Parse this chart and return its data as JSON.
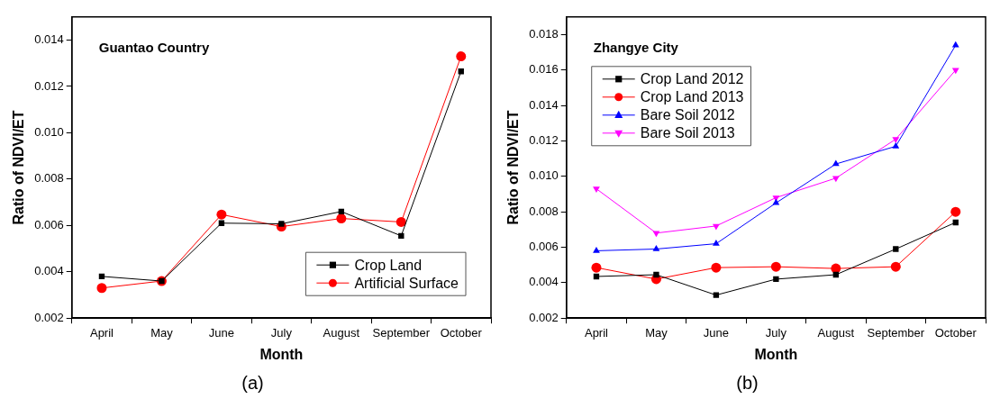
{
  "chart_data": [
    {
      "type": "line",
      "title": "Guantao Country",
      "xlabel": "Month",
      "ylabel": "Ratio of NDVI/ET",
      "annotations": [
        "(a)"
      ],
      "categories": [
        "April",
        "May",
        "June",
        "July",
        "August",
        "September",
        "October"
      ],
      "series": [
        {
          "name": "Crop Land",
          "color": "#000000",
          "marker": "square",
          "values": [
            0.0038,
            0.0036,
            0.0061,
            0.00607,
            0.0066,
            0.00555,
            0.01265
          ]
        },
        {
          "name": "Artificial Surface",
          "color": "#ff0000",
          "marker": "circle",
          "values": [
            0.0033,
            0.0036,
            0.00647,
            0.00595,
            0.0063,
            0.00615,
            0.0133
          ]
        }
      ],
      "ylim": [
        0.002,
        0.015
      ],
      "yticks": [
        0.002,
        0.004,
        0.006,
        0.008,
        {
          "value": 0.01,
          "label": "0.010"
        },
        0.012,
        0.014
      ],
      "grid": false,
      "legend": "bottom right",
      "line_style": "solid"
    },
    {
      "type": "line",
      "title": "Zhangye City",
      "xlabel": "Month",
      "ylabel": "Ratio of NDVI/ET",
      "annotations": [
        "(b)"
      ],
      "categories": [
        "April",
        "May",
        "June",
        "July",
        "August",
        "September",
        "October"
      ],
      "series": [
        {
          "name": "Crop Land 2012",
          "color": "#000000",
          "marker": "square",
          "values": [
            0.00435,
            0.00445,
            0.0033,
            0.0042,
            0.00445,
            0.0059,
            0.0074
          ]
        },
        {
          "name": "Crop Land 2013",
          "color": "#ff0000",
          "marker": "circle",
          "values": [
            0.00485,
            0.0042,
            0.00485,
            0.0049,
            0.0048,
            0.0049,
            0.008
          ]
        },
        {
          "name": "Bare Soil 2012",
          "color": "#0000ff",
          "marker": "triangle",
          "values": [
            0.0058,
            0.0059,
            0.0062,
            0.0085,
            0.0107,
            0.0117,
            0.0174
          ]
        },
        {
          "name": "Bare Soil 2013",
          "color": "#ff00ff",
          "marker": "triangle-down",
          "values": [
            0.0093,
            0.0068,
            0.0072,
            0.0088,
            0.0099,
            0.0121,
            0.016
          ]
        }
      ],
      "ylim": [
        0.002,
        0.019
      ],
      "yticks": [
        0.002,
        0.004,
        0.006,
        0.008,
        {
          "value": 0.01,
          "label": "0.010"
        },
        0.012,
        0.014,
        0.016,
        0.018
      ],
      "grid": false,
      "legend": "top left",
      "line_style": "solid"
    }
  ]
}
